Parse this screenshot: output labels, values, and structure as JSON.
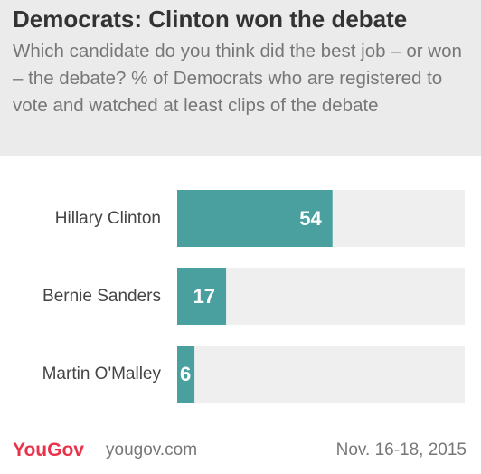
{
  "header": {
    "title": "Democrats: Clinton won the debate",
    "subtitle": "Which candidate do you think did the best job – or won – the debate? % of Democrats who are registered to vote and watched at least clips of the debate"
  },
  "chart_data": {
    "type": "bar",
    "orientation": "horizontal",
    "categories": [
      "Hillary Clinton",
      "Bernie Sanders",
      "Martin O'Malley"
    ],
    "values": [
      54,
      17,
      6
    ],
    "xlim": [
      0,
      100
    ],
    "grid": false,
    "data_labels": [
      "54",
      "17",
      "6"
    ]
  },
  "colors": {
    "bar": "#4a9f9f",
    "track": "#efefef",
    "header_bg": "#ebebeb",
    "brand": "#e8334a"
  },
  "footer": {
    "brand": "YouGov",
    "website": "yougov.com",
    "date": "Nov. 16-18, 2015"
  }
}
